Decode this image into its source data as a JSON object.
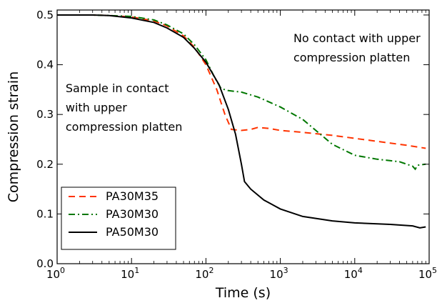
{
  "chart_data": {
    "type": "line",
    "xlabel": "Time (s)",
    "ylabel": "Compression strain",
    "xscale": "log",
    "xlim": [
      1,
      100000
    ],
    "ylim": [
      0.0,
      0.51
    ],
    "x_ticks": [
      {
        "value": 1,
        "base": "10",
        "exp": "0"
      },
      {
        "value": 10,
        "base": "10",
        "exp": "1"
      },
      {
        "value": 100,
        "base": "10",
        "exp": "2"
      },
      {
        "value": 1000,
        "base": "10",
        "exp": "3"
      },
      {
        "value": 10000,
        "base": "10",
        "exp": "4"
      },
      {
        "value": 100000,
        "base": "10",
        "exp": "5"
      }
    ],
    "y_ticks": [
      {
        "value": 0.0,
        "label": "0.0"
      },
      {
        "value": 0.1,
        "label": "0.1"
      },
      {
        "value": 0.2,
        "label": "0.2"
      },
      {
        "value": 0.3,
        "label": "0.3"
      },
      {
        "value": 0.4,
        "label": "0.4"
      },
      {
        "value": 0.5,
        "label": "0.5"
      }
    ],
    "grid": false,
    "legend_position": "bottom-left",
    "annotations": [
      {
        "lines": [
          "No contact with upper",
          "compression platten"
        ],
        "x": 1500,
        "y": 0.445
      },
      {
        "lines": [
          "Sample in contact",
          "with upper",
          "compression platten"
        ],
        "x": 1.3,
        "y": 0.345
      }
    ],
    "series": [
      {
        "name": "PA30M35",
        "color": "#ff3300",
        "dash": "dashed",
        "points": [
          [
            1,
            0.5
          ],
          [
            3,
            0.5
          ],
          [
            5,
            0.499
          ],
          [
            10,
            0.496
          ],
          [
            20,
            0.488
          ],
          [
            30,
            0.478
          ],
          [
            50,
            0.458
          ],
          [
            70,
            0.435
          ],
          [
            100,
            0.4
          ],
          [
            140,
            0.35
          ],
          [
            180,
            0.3
          ],
          [
            220,
            0.27
          ],
          [
            300,
            0.268
          ],
          [
            400,
            0.27
          ],
          [
            500,
            0.274
          ],
          [
            700,
            0.272
          ],
          [
            1000,
            0.268
          ],
          [
            2000,
            0.264
          ],
          [
            5000,
            0.258
          ],
          [
            10000,
            0.252
          ],
          [
            20000,
            0.246
          ],
          [
            50000,
            0.238
          ],
          [
            90000,
            0.232
          ]
        ]
      },
      {
        "name": "PA30M30",
        "color": "#007700",
        "dash": "dashdot",
        "points": [
          [
            1,
            0.5
          ],
          [
            3,
            0.5
          ],
          [
            5,
            0.499
          ],
          [
            10,
            0.497
          ],
          [
            20,
            0.49
          ],
          [
            30,
            0.48
          ],
          [
            50,
            0.462
          ],
          [
            70,
            0.44
          ],
          [
            100,
            0.41
          ],
          [
            130,
            0.375
          ],
          [
            160,
            0.352
          ],
          [
            200,
            0.348
          ],
          [
            300,
            0.345
          ],
          [
            500,
            0.335
          ],
          [
            1000,
            0.315
          ],
          [
            2000,
            0.29
          ],
          [
            3000,
            0.268
          ],
          [
            5000,
            0.24
          ],
          [
            10000,
            0.218
          ],
          [
            20000,
            0.21
          ],
          [
            40000,
            0.205
          ],
          [
            60000,
            0.196
          ],
          [
            65000,
            0.19
          ],
          [
            70000,
            0.198
          ],
          [
            90000,
            0.2
          ]
        ]
      },
      {
        "name": "PA50M30",
        "color": "#000000",
        "dash": "solid",
        "points": [
          [
            1,
            0.5
          ],
          [
            3,
            0.5
          ],
          [
            5,
            0.499
          ],
          [
            10,
            0.494
          ],
          [
            20,
            0.485
          ],
          [
            30,
            0.474
          ],
          [
            50,
            0.455
          ],
          [
            70,
            0.433
          ],
          [
            100,
            0.405
          ],
          [
            150,
            0.36
          ],
          [
            200,
            0.31
          ],
          [
            250,
            0.26
          ],
          [
            300,
            0.2
          ],
          [
            330,
            0.165
          ],
          [
            400,
            0.15
          ],
          [
            600,
            0.128
          ],
          [
            1000,
            0.11
          ],
          [
            2000,
            0.095
          ],
          [
            5000,
            0.086
          ],
          [
            10000,
            0.082
          ],
          [
            30000,
            0.079
          ],
          [
            60000,
            0.076
          ],
          [
            75000,
            0.072
          ],
          [
            90000,
            0.074
          ]
        ]
      }
    ]
  }
}
